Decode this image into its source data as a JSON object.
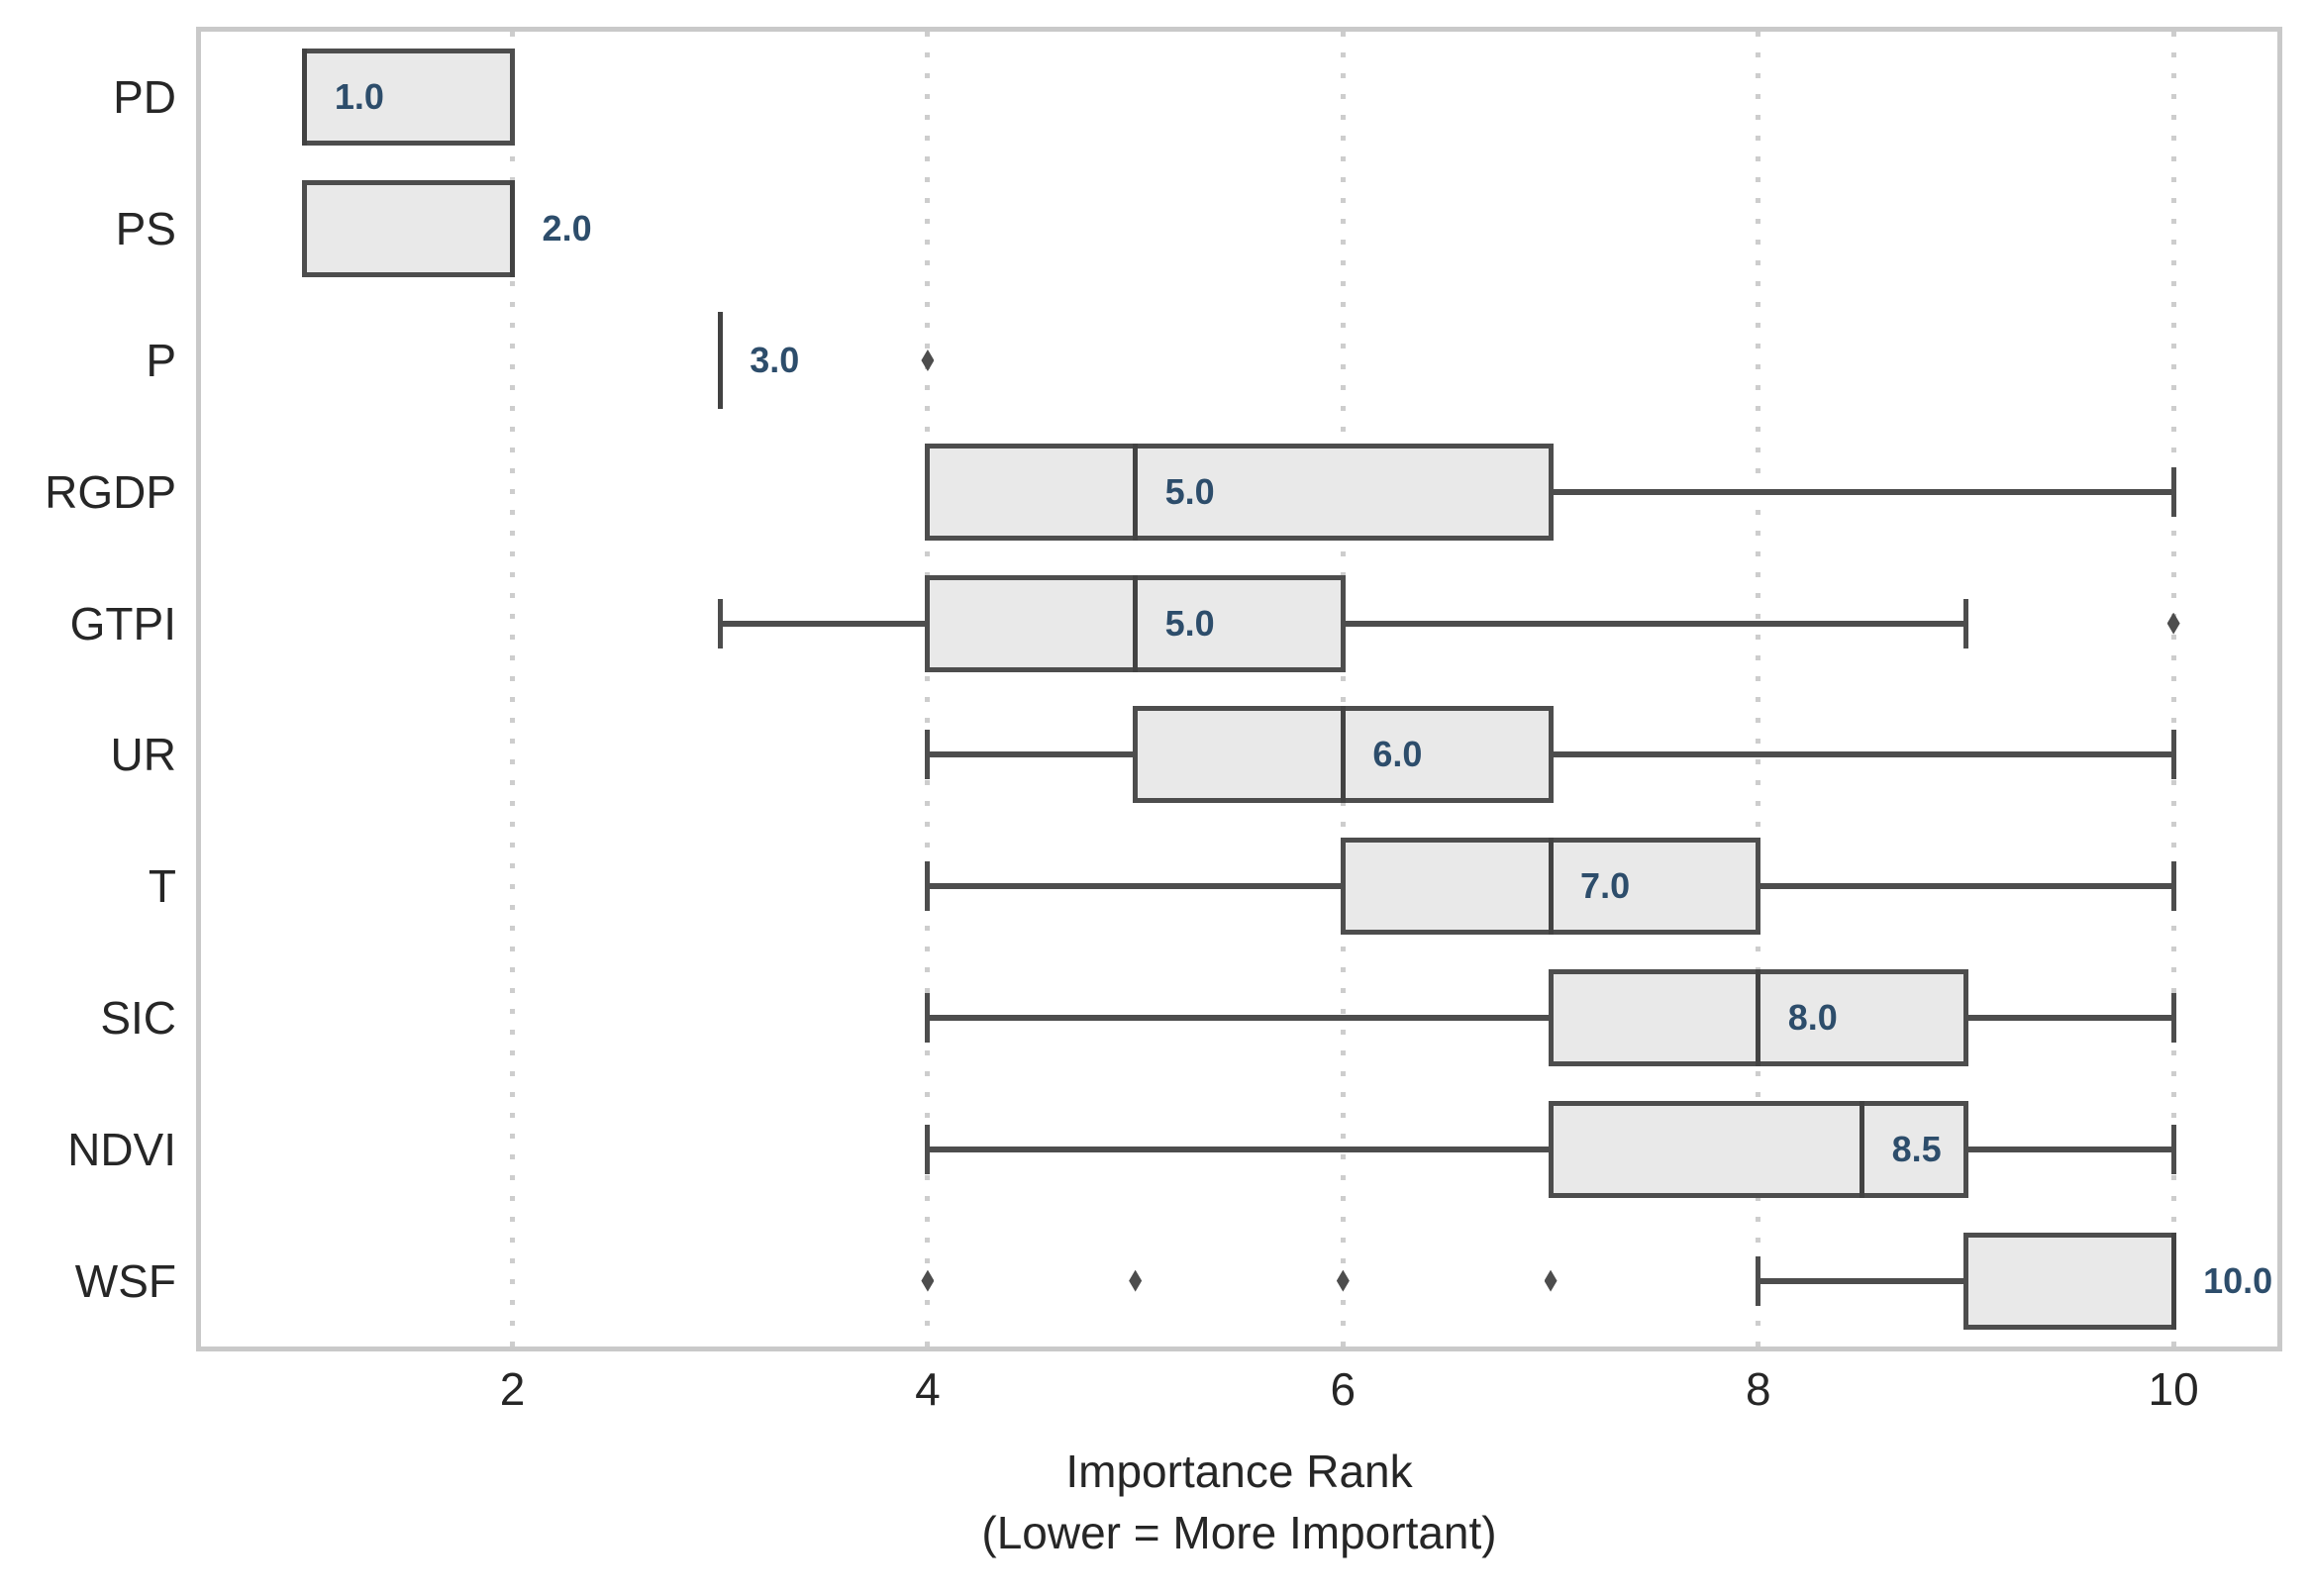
{
  "chart_data": {
    "type": "boxplot_horizontal",
    "title": "",
    "xlabel_line1": "Importance Rank",
    "xlabel_line2": "(Lower = More Important)",
    "xlim": [
      0.5,
      10.5
    ],
    "xticks": [
      2,
      4,
      6,
      8,
      10
    ],
    "xtick_labels": [
      "2",
      "4",
      "6",
      "8",
      "10"
    ],
    "grid": "vertical-dotted",
    "legend": "none",
    "categories": [
      "PD",
      "PS",
      "P",
      "RGDP",
      "GTPI",
      "UR",
      "T",
      "SIC",
      "NDVI",
      "WSF"
    ],
    "boxes": [
      {
        "label": "PD",
        "whisker_low": 1,
        "q1": 1,
        "median": 1,
        "q3": 2,
        "whisker_high": 2,
        "outliers": [],
        "median_label": "1.0"
      },
      {
        "label": "PS",
        "whisker_low": 1,
        "q1": 1,
        "median": 2,
        "q3": 2,
        "whisker_high": 2,
        "outliers": [],
        "median_label": "2.0"
      },
      {
        "label": "P",
        "whisker_low": 3,
        "q1": 3,
        "median": 3,
        "q3": 3,
        "whisker_high": 3,
        "outliers": [
          4
        ],
        "median_label": "3.0"
      },
      {
        "label": "RGDP",
        "whisker_low": 4,
        "q1": 4,
        "median": 5,
        "q3": 7,
        "whisker_high": 10,
        "outliers": [],
        "median_label": "5.0"
      },
      {
        "label": "GTPI",
        "whisker_low": 3,
        "q1": 4,
        "median": 5,
        "q3": 6,
        "whisker_high": 9,
        "outliers": [
          10
        ],
        "median_label": "5.0"
      },
      {
        "label": "UR",
        "whisker_low": 4,
        "q1": 5,
        "median": 6,
        "q3": 7,
        "whisker_high": 10,
        "outliers": [],
        "median_label": "6.0"
      },
      {
        "label": "T",
        "whisker_low": 4,
        "q1": 6,
        "median": 7,
        "q3": 8,
        "whisker_high": 10,
        "outliers": [],
        "median_label": "7.0"
      },
      {
        "label": "SIC",
        "whisker_low": 4,
        "q1": 7,
        "median": 8,
        "q3": 9,
        "whisker_high": 10,
        "outliers": [],
        "median_label": "8.0"
      },
      {
        "label": "NDVI",
        "whisker_low": 4,
        "q1": 7,
        "median": 8.5,
        "q3": 9,
        "whisker_high": 10,
        "outliers": [],
        "median_label": "8.5"
      },
      {
        "label": "WSF",
        "whisker_low": 8,
        "q1": 9,
        "median": 10,
        "q3": 10,
        "whisker_high": 10,
        "outliers": [
          4,
          5,
          6,
          7
        ],
        "median_label": "10.0"
      }
    ],
    "colors": {
      "box_fill": "#e9e9e9",
      "box_border": "#4d4d4d",
      "median_line": "#424242",
      "median_label_text": "#2d4d6b",
      "gridline": "#cdcdcd",
      "spine": "#c9c9c9",
      "tick_text": "#262626",
      "background": "#ffffff"
    }
  }
}
